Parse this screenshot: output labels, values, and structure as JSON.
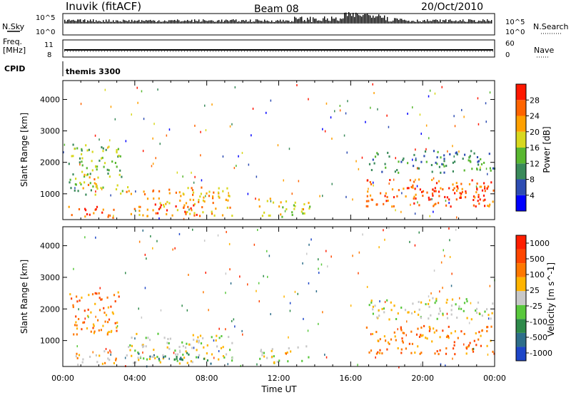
{
  "header": {
    "station": "Inuvik (fitACF)",
    "beam": "Beam 08",
    "date": "20/Oct/2010"
  },
  "panels": {
    "nsky": {
      "left_label": "N.Sky",
      "right_label": "N.Search",
      "left_top": "10^5",
      "left_bottom": "10^0",
      "right_top": "10^5",
      "right_bottom": "10^0"
    },
    "freq": {
      "left_label": "Freq.",
      "left_unit": "[MHz]",
      "right_label": "Nave",
      "left_top": "11",
      "left_bottom": "8",
      "right_top": "60",
      "right_bottom": "0"
    },
    "cpid": {
      "label": "CPID",
      "text": "themis 3300"
    }
  },
  "chart_data": [
    {
      "type": "heatmap",
      "name": "power",
      "ylabel": "Slant Range [km]",
      "ylim": [
        180,
        4600
      ],
      "yticks": [
        "1000",
        "2000",
        "3000",
        "4000"
      ],
      "colorbar": {
        "label": "Power [dB]",
        "ticks": [
          "4",
          "8",
          "12",
          "16",
          "20",
          "24",
          "28"
        ],
        "colors": [
          "#0000ff",
          "#2e4db3",
          "#3a8a5a",
          "#59b830",
          "#d8d81e",
          "#ffa000",
          "#ff6400",
          "#ff1800"
        ]
      },
      "regions": [
        {
          "t": [
            0.3,
            3.0
          ],
          "r": [
            250,
            650
          ],
          "level": 6
        },
        {
          "t": [
            0.3,
            3.3
          ],
          "r": [
            1000,
            2600
          ],
          "level": 3
        },
        {
          "t": [
            0.5,
            2.0
          ],
          "r": [
            1200,
            1700
          ],
          "level": 5
        },
        {
          "t": [
            3.5,
            9.4
          ],
          "r": [
            300,
            1250
          ],
          "level": 5
        },
        {
          "t": [
            5.0,
            7.7
          ],
          "r": [
            300,
            700
          ],
          "level": 7
        },
        {
          "t": [
            10.8,
            13.7
          ],
          "r": [
            300,
            900
          ],
          "level": 4
        },
        {
          "t": [
            16.8,
            24.0
          ],
          "r": [
            600,
            1500
          ],
          "level": 6
        },
        {
          "t": [
            17.0,
            24.0
          ],
          "r": [
            1700,
            2400
          ],
          "level": 2
        },
        {
          "t": [
            19.5,
            23.5
          ],
          "r": [
            800,
            1200
          ],
          "level": 7
        }
      ]
    },
    {
      "type": "heatmap",
      "name": "velocity",
      "xlabel": "Time UT",
      "ylabel": "Slant Range [km]",
      "xlim": [
        0,
        24
      ],
      "xticks": [
        "00:00",
        "04:00",
        "08:00",
        "12:00",
        "16:00",
        "20:00",
        "00:00"
      ],
      "ylim": [
        180,
        4600
      ],
      "yticks": [
        "1000",
        "2000",
        "3000",
        "4000"
      ],
      "colorbar": {
        "label": "Velocity [m s^-1]",
        "ticks": [
          "1000",
          "500",
          "100",
          "25",
          "-25",
          "-100",
          "-500",
          "-1000"
        ],
        "colors": [
          "#1e46c8",
          "#2e6e8a",
          "#2e8a4a",
          "#59c83c",
          "#c8c8c8",
          "#ffb400",
          "#ff7800",
          "#ff4600",
          "#ff1e00"
        ]
      },
      "regions": [
        {
          "t": [
            0.3,
            3.2
          ],
          "r": [
            1200,
            2600
          ],
          "level": 6
        },
        {
          "t": [
            0.3,
            3.0
          ],
          "r": [
            250,
            700
          ],
          "level": 5
        },
        {
          "t": [
            3.5,
            9.4
          ],
          "r": [
            300,
            1250
          ],
          "level": 4
        },
        {
          "t": [
            4.0,
            8.5
          ],
          "r": [
            300,
            650
          ],
          "level": 2
        },
        {
          "t": [
            10.8,
            13.7
          ],
          "r": [
            300,
            850
          ],
          "level": 4
        },
        {
          "t": [
            16.8,
            24.0
          ],
          "r": [
            600,
            1500
          ],
          "level": 6
        },
        {
          "t": [
            17.0,
            24.0
          ],
          "r": [
            1700,
            2400
          ],
          "level": 4
        }
      ]
    }
  ]
}
